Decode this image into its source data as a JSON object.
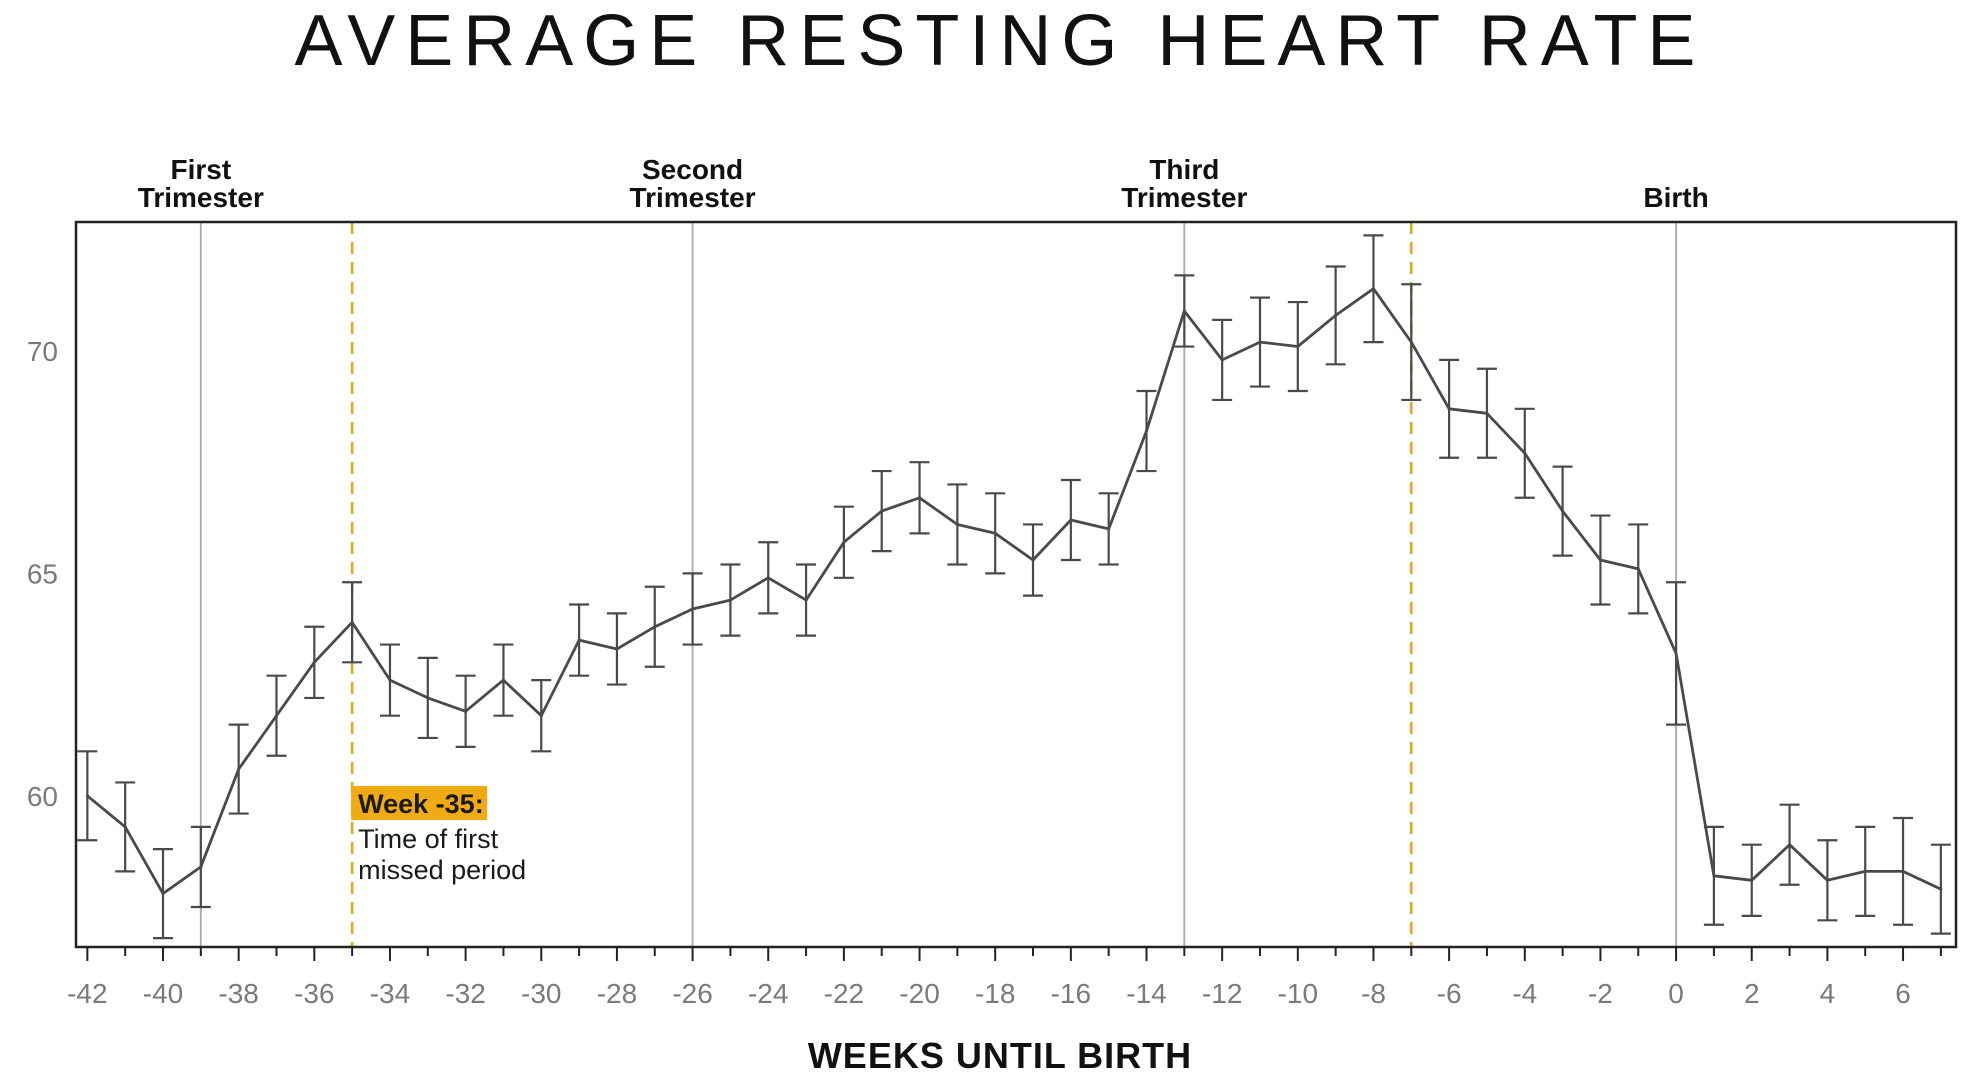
{
  "chart_data": {
    "type": "line",
    "title": "AVERAGE RESTING HEART RATE",
    "xlabel": "WEEKS UNTIL BIRTH",
    "ylabel": "",
    "xlim": [
      -42.3,
      7.4
    ],
    "ylim": [
      56.6,
      72.9
    ],
    "x_ticks": [
      -42,
      -40,
      -38,
      -36,
      -34,
      -32,
      -30,
      -28,
      -26,
      -24,
      -22,
      -20,
      -18,
      -16,
      -14,
      -12,
      -10,
      -8,
      -6,
      -4,
      -2,
      0,
      2,
      4,
      6
    ],
    "x_tick_labels": [
      "-42",
      "-40",
      "-38",
      "-36",
      "-34",
      "-32",
      "-30",
      "-28",
      "-26",
      "-24",
      "-22",
      "-20",
      "-18",
      "-16",
      "-14",
      "-12",
      "-10",
      "-8",
      "-6",
      "-4",
      "-2",
      "0",
      "2",
      "4",
      "6"
    ],
    "y_ticks": [
      60,
      65,
      70
    ],
    "y_tick_labels": [
      "60",
      "65",
      "70"
    ],
    "grid": false,
    "line_color": "#4a4a4a",
    "reference_lines": [
      {
        "x": -39,
        "label_lines": [
          "First",
          "Trimester"
        ],
        "color": "#b0b0b0",
        "style": "solid"
      },
      {
        "x": -26,
        "label_lines": [
          "Second",
          "Trimester"
        ],
        "color": "#b0b0b0",
        "style": "solid"
      },
      {
        "x": -13,
        "label_lines": [
          "Third",
          "Trimester"
        ],
        "color": "#b0b0b0",
        "style": "solid"
      },
      {
        "x": 0,
        "label_lines": [
          "Birth"
        ],
        "color": "#b0b0b0",
        "style": "solid"
      },
      {
        "x": -35,
        "label_lines": [],
        "color": "#e3a51c",
        "style": "dashed"
      },
      {
        "x": -7,
        "label_lines": [],
        "color": "#e3a51c",
        "style": "dashed"
      }
    ],
    "annotation": {
      "x": -35,
      "title": "Week -35:",
      "text_lines": [
        "Time of first",
        "missed period"
      ],
      "highlight_color": "#f0aa16"
    },
    "series": [
      {
        "x": [
          -42,
          -41,
          -40,
          -39,
          -38,
          -37,
          -36,
          -35,
          -34,
          -33,
          -32,
          -31,
          -30,
          -29,
          -28,
          -27,
          -26,
          -25,
          -24,
          -23,
          -22,
          -21,
          -20,
          -19,
          -18,
          -17,
          -16,
          -15,
          -14,
          -13,
          -12,
          -11,
          -10,
          -9,
          -8,
          -7,
          -6,
          -5,
          -4,
          -3,
          -2,
          -1,
          0,
          1,
          2,
          3,
          4,
          5,
          6,
          7
        ],
        "y": [
          60.0,
          59.3,
          57.8,
          58.4,
          60.6,
          61.8,
          63.0,
          63.9,
          62.6,
          62.2,
          61.9,
          62.6,
          61.8,
          63.5,
          63.3,
          63.8,
          64.2,
          64.4,
          64.9,
          64.4,
          65.7,
          66.4,
          66.7,
          66.1,
          65.9,
          65.3,
          66.2,
          66.0,
          68.2,
          70.9,
          69.8,
          70.2,
          70.1,
          70.8,
          71.4,
          70.2,
          68.7,
          68.6,
          67.7,
          66.4,
          65.3,
          65.1,
          63.2,
          58.2,
          58.1,
          58.9,
          58.1,
          58.3,
          58.3,
          57.9
        ],
        "error": [
          1.0,
          1.0,
          1.0,
          0.9,
          1.0,
          0.9,
          0.8,
          0.9,
          0.8,
          0.9,
          0.8,
          0.8,
          0.8,
          0.8,
          0.8,
          0.9,
          0.8,
          0.8,
          0.8,
          0.8,
          0.8,
          0.9,
          0.8,
          0.9,
          0.9,
          0.8,
          0.9,
          0.8,
          0.9,
          0.8,
          0.9,
          1.0,
          1.0,
          1.1,
          1.2,
          1.3,
          1.1,
          1.0,
          1.0,
          1.0,
          1.0,
          1.0,
          1.6,
          1.1,
          0.8,
          0.9,
          0.9,
          1.0,
          1.2,
          1.0
        ]
      }
    ]
  }
}
